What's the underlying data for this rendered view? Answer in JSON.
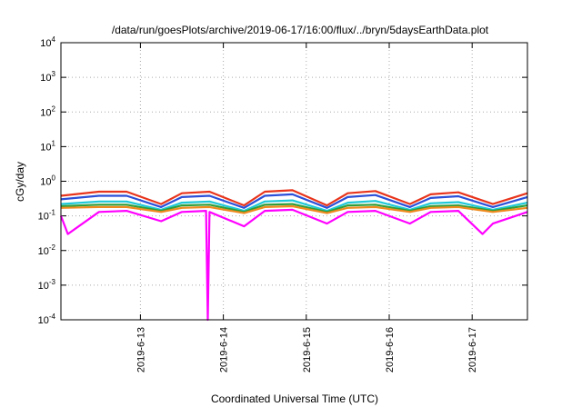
{
  "chart_data": {
    "type": "line",
    "title": "/data/run/goesPlots/archive/2019-06-17/16:00/flux/../bryn/5daysEarthData.plot",
    "xlabel": "Coordinated Universal Time (UTC)",
    "ylabel": "cGy/day",
    "yscale": "log",
    "ylim": [
      0.0001,
      10000
    ],
    "xlim": [
      "2019-06-12 01:00",
      "2019-06-17 16:00"
    ],
    "x_ticks": [
      "2019-6-13",
      "2019-6-14",
      "2019-6-15",
      "2019-6-16",
      "2019-6-17"
    ],
    "y_ticks": [
      {
        "base": "10",
        "exp": "-4"
      },
      {
        "base": "10",
        "exp": "-3"
      },
      {
        "base": "10",
        "exp": "-2"
      },
      {
        "base": "10",
        "exp": "-1"
      },
      {
        "base": "10",
        "exp": "0"
      },
      {
        "base": "10",
        "exp": "1"
      },
      {
        "base": "10",
        "exp": "2"
      },
      {
        "base": "10",
        "exp": "3"
      },
      {
        "base": "10",
        "exp": "4"
      }
    ],
    "grid": true,
    "legend": "none",
    "series": [
      {
        "color": "#e8341c",
        "x": [
          "2019-06-12 01:00",
          "2019-06-12 12:00",
          "2019-06-12 20:00",
          "2019-06-13 06:00",
          "2019-06-13 12:00",
          "2019-06-13 20:00",
          "2019-06-14 06:00",
          "2019-06-14 12:00",
          "2019-06-14 20:00",
          "2019-06-15 06:00",
          "2019-06-15 12:00",
          "2019-06-15 20:00",
          "2019-06-16 06:00",
          "2019-06-16 12:00",
          "2019-06-16 20:00",
          "2019-06-17 06:00",
          "2019-06-17 16:00"
        ],
        "values": [
          0.38,
          0.5,
          0.5,
          0.22,
          0.45,
          0.5,
          0.2,
          0.5,
          0.55,
          0.2,
          0.45,
          0.52,
          0.22,
          0.42,
          0.48,
          0.22,
          0.45
        ]
      },
      {
        "color": "#2b4fd8",
        "x": [
          "2019-06-12 01:00",
          "2019-06-12 12:00",
          "2019-06-12 20:00",
          "2019-06-13 06:00",
          "2019-06-13 12:00",
          "2019-06-13 20:00",
          "2019-06-14 06:00",
          "2019-06-14 12:00",
          "2019-06-14 20:00",
          "2019-06-15 06:00",
          "2019-06-15 12:00",
          "2019-06-15 20:00",
          "2019-06-16 06:00",
          "2019-06-16 12:00",
          "2019-06-16 20:00",
          "2019-06-17 06:00",
          "2019-06-17 16:00"
        ],
        "values": [
          0.3,
          0.38,
          0.38,
          0.18,
          0.35,
          0.38,
          0.17,
          0.38,
          0.42,
          0.17,
          0.35,
          0.4,
          0.18,
          0.33,
          0.37,
          0.18,
          0.35
        ]
      },
      {
        "color": "#1fc8d8",
        "x": [
          "2019-06-12 01:00",
          "2019-06-12 12:00",
          "2019-06-12 20:00",
          "2019-06-13 06:00",
          "2019-06-13 12:00",
          "2019-06-13 20:00",
          "2019-06-14 06:00",
          "2019-06-14 12:00",
          "2019-06-14 20:00",
          "2019-06-15 06:00",
          "2019-06-15 12:00",
          "2019-06-15 20:00",
          "2019-06-16 06:00",
          "2019-06-16 12:00",
          "2019-06-16 20:00",
          "2019-06-17 06:00",
          "2019-06-17 16:00"
        ],
        "values": [
          0.22,
          0.26,
          0.26,
          0.15,
          0.24,
          0.26,
          0.14,
          0.26,
          0.28,
          0.14,
          0.24,
          0.27,
          0.15,
          0.23,
          0.25,
          0.15,
          0.24
        ]
      },
      {
        "color": "#2e9e3a",
        "x": [
          "2019-06-12 01:00",
          "2019-06-12 12:00",
          "2019-06-12 20:00",
          "2019-06-13 06:00",
          "2019-06-13 12:00",
          "2019-06-13 20:00",
          "2019-06-14 06:00",
          "2019-06-14 12:00",
          "2019-06-14 20:00",
          "2019-06-15 06:00",
          "2019-06-15 12:00",
          "2019-06-15 20:00",
          "2019-06-16 06:00",
          "2019-06-16 12:00",
          "2019-06-16 20:00",
          "2019-06-17 06:00",
          "2019-06-17 16:00"
        ],
        "values": [
          0.19,
          0.21,
          0.21,
          0.14,
          0.2,
          0.21,
          0.13,
          0.21,
          0.22,
          0.13,
          0.2,
          0.21,
          0.14,
          0.19,
          0.2,
          0.14,
          0.2
        ]
      },
      {
        "color": "#f08a1e",
        "x": [
          "2019-06-12 01:00",
          "2019-06-12 12:00",
          "2019-06-12 20:00",
          "2019-06-13 06:00",
          "2019-06-13 12:00",
          "2019-06-13 20:00",
          "2019-06-14 06:00",
          "2019-06-14 12:00",
          "2019-06-14 20:00",
          "2019-06-15 06:00",
          "2019-06-15 12:00",
          "2019-06-15 20:00",
          "2019-06-16 06:00",
          "2019-06-16 12:00",
          "2019-06-16 20:00",
          "2019-06-17 06:00",
          "2019-06-17 16:00"
        ],
        "values": [
          0.17,
          0.18,
          0.18,
          0.13,
          0.17,
          0.18,
          0.12,
          0.18,
          0.19,
          0.12,
          0.17,
          0.18,
          0.13,
          0.17,
          0.18,
          0.13,
          0.17
        ]
      },
      {
        "color": "#ff00ff",
        "x": [
          "2019-06-12 01:00",
          "2019-06-12 03:00",
          "2019-06-12 12:00",
          "2019-06-12 20:00",
          "2019-06-13 06:00",
          "2019-06-13 12:00",
          "2019-06-13 19:00",
          "2019-06-13 19:30",
          "2019-06-13 20:00",
          "2019-06-14 06:00",
          "2019-06-14 12:00",
          "2019-06-14 20:00",
          "2019-06-15 06:00",
          "2019-06-15 12:00",
          "2019-06-15 20:00",
          "2019-06-16 06:00",
          "2019-06-16 12:00",
          "2019-06-16 20:00",
          "2019-06-17 03:00",
          "2019-06-17 06:00",
          "2019-06-17 16:00"
        ],
        "values": [
          0.1,
          0.03,
          0.13,
          0.14,
          0.07,
          0.13,
          0.14,
          0.0001,
          0.13,
          0.05,
          0.14,
          0.15,
          0.06,
          0.13,
          0.14,
          0.06,
          0.13,
          0.14,
          0.03,
          0.06,
          0.13
        ]
      }
    ]
  }
}
